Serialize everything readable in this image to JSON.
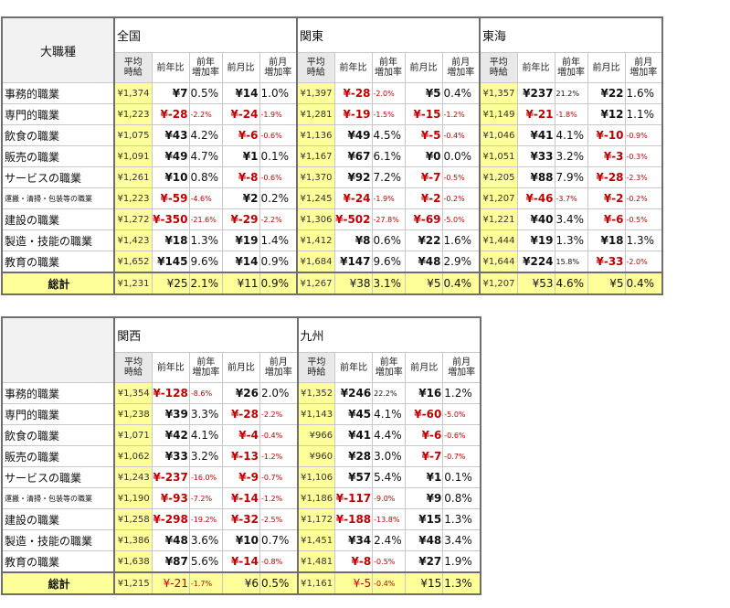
{
  "corner_label": "大職種",
  "sub_headers": {
    "avg": "平均\n時給",
    "yoy": "前年比",
    "yoy_rate": "前年\n増加率",
    "mom": "前月比",
    "mom_rate": "前月\n増加率"
  },
  "categories": [
    "事務的職業",
    "専門的職業",
    "飲食の職業",
    "販売の職業",
    "サービスの職業",
    "運搬・清掃・包装等の職業",
    "建設の職業",
    "製造・技能の職業",
    "教育の職業"
  ],
  "total_label": "総計",
  "table1": {
    "regions": [
      {
        "name": "全国",
        "rows": [
          [
            "¥1,374",
            "¥7",
            "0.5%",
            "¥14",
            "1.0%"
          ],
          [
            "¥1,223",
            "¥-28",
            "-2.2%",
            "¥-24",
            "-1.9%"
          ],
          [
            "¥1,075",
            "¥43",
            "4.2%",
            "¥-6",
            "-0.6%"
          ],
          [
            "¥1,091",
            "¥49",
            "4.7%",
            "¥1",
            "0.1%"
          ],
          [
            "¥1,261",
            "¥10",
            "0.8%",
            "¥-8",
            "-0.6%"
          ],
          [
            "¥1,223",
            "¥-59",
            "-4.6%",
            "¥2",
            "0.2%"
          ],
          [
            "¥1,272",
            "¥-350",
            "-21.6%",
            "¥-29",
            "-2.2%"
          ],
          [
            "¥1,423",
            "¥18",
            "1.3%",
            "¥19",
            "1.4%"
          ],
          [
            "¥1,652",
            "¥145",
            "9.6%",
            "¥14",
            "0.9%"
          ]
        ],
        "total": [
          "¥1,231",
          "¥25",
          "2.1%",
          "¥11",
          "0.9%"
        ]
      },
      {
        "name": "関東",
        "rows": [
          [
            "¥1,397",
            "¥-28",
            "-2.0%",
            "¥5",
            "0.4%"
          ],
          [
            "¥1,281",
            "¥-19",
            "-1.5%",
            "¥-15",
            "-1.2%"
          ],
          [
            "¥1,136",
            "¥49",
            "4.5%",
            "¥-5",
            "-0.4%"
          ],
          [
            "¥1,167",
            "¥67",
            "6.1%",
            "¥0",
            "0.0%"
          ],
          [
            "¥1,370",
            "¥92",
            "7.2%",
            "¥-7",
            "-0.5%"
          ],
          [
            "¥1,245",
            "¥-24",
            "-1.9%",
            "¥-2",
            "-0.2%"
          ],
          [
            "¥1,306",
            "¥-502",
            "-27.8%",
            "¥-69",
            "-5.0%"
          ],
          [
            "¥1,412",
            "¥8",
            "0.6%",
            "¥22",
            "1.6%"
          ],
          [
            "¥1,684",
            "¥147",
            "9.6%",
            "¥48",
            "2.9%"
          ]
        ],
        "total": [
          "¥1,267",
          "¥38",
          "3.1%",
          "¥5",
          "0.4%"
        ]
      },
      {
        "name": "東海",
        "rows": [
          [
            "¥1,357",
            "¥237",
            "21.2%",
            "¥22",
            "1.6%"
          ],
          [
            "¥1,149",
            "¥-21",
            "-1.8%",
            "¥12",
            "1.1%"
          ],
          [
            "¥1,046",
            "¥41",
            "4.1%",
            "¥-10",
            "-0.9%"
          ],
          [
            "¥1,051",
            "¥33",
            "3.2%",
            "¥-3",
            "-0.3%"
          ],
          [
            "¥1,205",
            "¥88",
            "7.9%",
            "¥-28",
            "-2.3%"
          ],
          [
            "¥1,207",
            "¥-46",
            "-3.7%",
            "¥-2",
            "-0.2%"
          ],
          [
            "¥1,221",
            "¥40",
            "3.4%",
            "¥-6",
            "-0.5%"
          ],
          [
            "¥1,444",
            "¥19",
            "1.3%",
            "¥18",
            "1.3%"
          ],
          [
            "¥1,644",
            "¥224",
            "15.8%",
            "¥-33",
            "-2.0%"
          ]
        ],
        "total": [
          "¥1,207",
          "¥53",
          "4.6%",
          "¥5",
          "0.4%"
        ]
      }
    ]
  },
  "table2": {
    "regions": [
      {
        "name": "関西",
        "rows": [
          [
            "¥1,354",
            "¥-128",
            "-8.6%",
            "¥26",
            "2.0%"
          ],
          [
            "¥1,238",
            "¥39",
            "3.3%",
            "¥-28",
            "-2.2%"
          ],
          [
            "¥1,071",
            "¥42",
            "4.1%",
            "¥-4",
            "-0.4%"
          ],
          [
            "¥1,062",
            "¥33",
            "3.2%",
            "¥-13",
            "-1.2%"
          ],
          [
            "¥1,243",
            "¥-237",
            "-16.0%",
            "¥-9",
            "-0.7%"
          ],
          [
            "¥1,190",
            "¥-93",
            "-7.2%",
            "¥-14",
            "-1.2%"
          ],
          [
            "¥1,258",
            "¥-298",
            "-19.2%",
            "¥-32",
            "-2.5%"
          ],
          [
            "¥1,386",
            "¥48",
            "3.6%",
            "¥10",
            "0.7%"
          ],
          [
            "¥1,638",
            "¥87",
            "5.6%",
            "¥-14",
            "-0.8%"
          ]
        ],
        "total": [
          "¥1,215",
          "¥-21",
          "-1.7%",
          "¥6",
          "0.5%"
        ]
      },
      {
        "name": "九州",
        "rows": [
          [
            "¥1,352",
            "¥246",
            "22.2%",
            "¥16",
            "1.2%"
          ],
          [
            "¥1,143",
            "¥45",
            "4.1%",
            "¥-60",
            "-5.0%"
          ],
          [
            "¥966",
            "¥41",
            "4.4%",
            "¥-6",
            "-0.6%"
          ],
          [
            "¥960",
            "¥28",
            "3.0%",
            "¥-7",
            "-0.7%"
          ],
          [
            "¥1,106",
            "¥57",
            "5.4%",
            "¥1",
            "0.1%"
          ],
          [
            "¥1,186",
            "¥-117",
            "-9.0%",
            "¥9",
            "0.8%"
          ],
          [
            "¥1,172",
            "¥-188",
            "-13.8%",
            "¥15",
            "1.3%"
          ],
          [
            "¥1,451",
            "¥34",
            "2.4%",
            "¥48",
            "3.4%"
          ],
          [
            "¥1,481",
            "¥-8",
            "-0.5%",
            "¥27",
            "1.9%"
          ]
        ],
        "total": [
          "¥1,161",
          "¥-5",
          "-0.4%",
          "¥15",
          "1.3%"
        ]
      }
    ]
  }
}
